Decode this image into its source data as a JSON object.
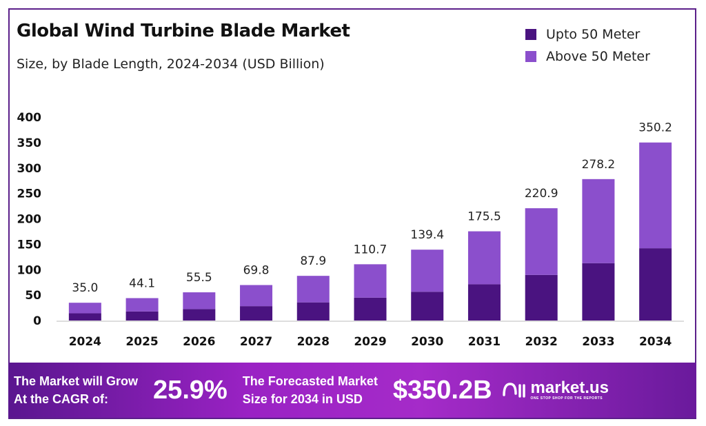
{
  "chart_data": {
    "type": "bar",
    "stacked": true,
    "title": "Global Wind Turbine Blade Market",
    "subtitle": "Size, by Blade Length, 2024-2034 (USD Billion)",
    "categories": [
      "2024",
      "2025",
      "2026",
      "2027",
      "2028",
      "2029",
      "2030",
      "2031",
      "2032",
      "2033",
      "2034"
    ],
    "series": [
      {
        "name": "Upto 50 Meter",
        "color": "#4a1380",
        "values": [
          14.2,
          17.9,
          22.5,
          28.3,
          35.7,
          45.0,
          56.6,
          71.3,
          89.7,
          112.9,
          142.2
        ]
      },
      {
        "name": "Above 50 Meter",
        "color": "#8b4fcc",
        "values": [
          20.8,
          26.2,
          33.0,
          41.5,
          52.2,
          65.7,
          82.8,
          104.2,
          131.2,
          165.3,
          208.0
        ]
      }
    ],
    "totals": [
      "35.0",
      "44.1",
      "55.5",
      "69.8",
      "87.9",
      "110.7",
      "139.4",
      "175.5",
      "220.9",
      "278.2",
      "350.2"
    ],
    "ylim": [
      0,
      400
    ],
    "yticks": [
      "0",
      "50",
      "100",
      "150",
      "200",
      "250",
      "300",
      "350",
      "400"
    ],
    "grid": false,
    "legend": "top-right"
  },
  "banner": {
    "cagr_label_1": "The Market will Grow",
    "cagr_label_2": "At the CAGR of:",
    "cagr_value": "25.9%",
    "forecast_label_1": "The Forecasted Market",
    "forecast_label_2": "Size for 2034 in USD",
    "forecast_value": "$350.2B",
    "logo_text": "market.us",
    "logo_tagline": "ONE STOP SHOP FOR THE REPORTS"
  }
}
